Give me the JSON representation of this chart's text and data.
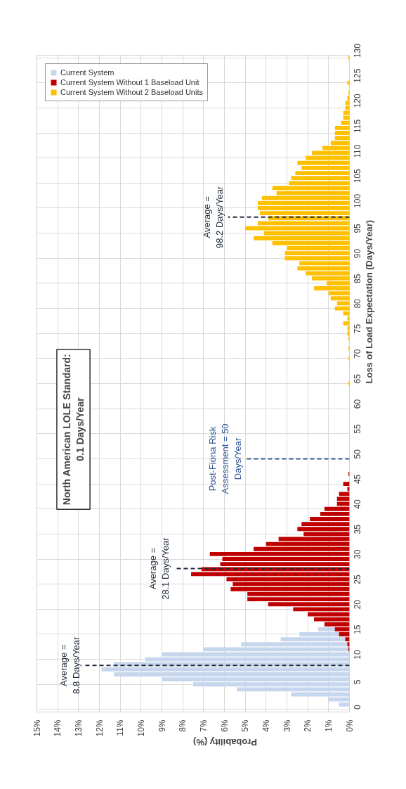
{
  "chart_data": {
    "type": "bar",
    "orientation": "horizontal",
    "xlabel": "Probability (%)",
    "ylabel": "Loss of Load Expectation (Days/Year)",
    "xlim": [
      15,
      0
    ],
    "xticks": [
      {
        "value": 0,
        "label": "0%"
      },
      {
        "value": 1,
        "label": "1%"
      },
      {
        "value": 2,
        "label": "2%"
      },
      {
        "value": 3,
        "label": "3%"
      },
      {
        "value": 4,
        "label": "4%"
      },
      {
        "value": 5,
        "label": "5%"
      },
      {
        "value": 6,
        "label": "6%"
      },
      {
        "value": 7,
        "label": "7%"
      },
      {
        "value": 8,
        "label": "8%"
      },
      {
        "value": 9,
        "label": "9%"
      },
      {
        "value": 10,
        "label": "10%"
      },
      {
        "value": 11,
        "label": "11%"
      },
      {
        "value": 12,
        "label": "12%"
      },
      {
        "value": 13,
        "label": "13%"
      },
      {
        "value": 14,
        "label": "14%"
      },
      {
        "value": 15,
        "label": "15%"
      }
    ],
    "ylim": [
      -0.5,
      130.5
    ],
    "yticks": [
      0,
      5,
      10,
      15,
      20,
      25,
      30,
      35,
      40,
      45,
      50,
      55,
      60,
      65,
      70,
      75,
      80,
      85,
      90,
      95,
      100,
      105,
      110,
      115,
      120,
      125,
      130
    ],
    "grid": true,
    "legend": "top left",
    "series": [
      {
        "name": "Current System",
        "color": "#c6d6ec",
        "x": [
          1,
          2,
          3,
          4,
          5,
          6,
          7,
          8,
          9,
          10,
          11,
          12,
          13,
          14,
          15,
          16
        ],
        "values": [
          0.5,
          1.0,
          2.8,
          5.4,
          7.5,
          9.0,
          11.3,
          11.9,
          11.3,
          9.8,
          9.0,
          7.0,
          5.2,
          3.3,
          2.4,
          1.5
        ]
      },
      {
        "name": "Current System Without 1 Baseload Unit",
        "color": "#c00000",
        "x": [
          12,
          13,
          14,
          15,
          16,
          17,
          18,
          19,
          20,
          21,
          22,
          23,
          24,
          25,
          26,
          27,
          28,
          29,
          30,
          31,
          32,
          33,
          34,
          35,
          36,
          37,
          38,
          39,
          40,
          41,
          42,
          43,
          44,
          45,
          47
        ],
        "values": [
          0.05,
          0.1,
          0.2,
          0.5,
          0.7,
          1.2,
          1.7,
          2.0,
          2.7,
          3.9,
          4.9,
          4.9,
          5.7,
          5.6,
          5.9,
          7.6,
          7.1,
          6.2,
          6.1,
          6.7,
          4.6,
          4.0,
          3.4,
          2.2,
          2.5,
          2.3,
          1.9,
          1.4,
          1.2,
          0.6,
          0.6,
          0.5,
          0.1,
          0.3,
          0.05
        ]
      },
      {
        "name": "Current System Without 2 Baseload Units",
        "color": "#ffc000",
        "x": [
          65,
          70,
          72,
          74,
          75,
          76,
          77,
          78,
          79,
          80,
          81,
          82,
          83,
          84,
          85,
          86,
          87,
          88,
          89,
          90,
          91,
          92,
          93,
          94,
          95,
          96,
          97,
          98,
          99,
          100,
          101,
          102,
          103,
          104,
          105,
          106,
          107,
          108,
          109,
          110,
          111,
          112,
          113,
          114,
          115,
          116,
          117,
          118,
          119,
          120,
          121,
          122,
          123,
          125,
          130
        ],
        "values": [
          0.05,
          0.05,
          0.05,
          0.05,
          0.1,
          0.1,
          0.3,
          0.1,
          0.3,
          0.7,
          0.6,
          0.9,
          1.0,
          1.7,
          1.1,
          1.8,
          2.1,
          2.5,
          2.4,
          3.1,
          3.1,
          3.0,
          3.7,
          4.6,
          4.1,
          5.0,
          4.4,
          3.9,
          4.3,
          4.4,
          4.4,
          4.2,
          3.5,
          3.7,
          2.9,
          2.8,
          2.6,
          2.3,
          2.5,
          2.1,
          1.8,
          1.3,
          0.9,
          0.7,
          0.7,
          0.7,
          0.4,
          0.3,
          0.3,
          0.2,
          0.2,
          0.1,
          0.05,
          0.1,
          0.05
        ]
      }
    ],
    "ref_lines": [
      {
        "axis": "y",
        "value": 8.8,
        "label": "Average =\n8.8 Days/Year",
        "color": "#1f2b3a",
        "line_style": "dashed"
      },
      {
        "axis": "y",
        "value": 28.1,
        "label": "Average =\n28.1 Days/Year",
        "color": "#1f2b3a",
        "line_style": "dashed"
      },
      {
        "axis": "y",
        "value": 50,
        "label": "Post-Fiona Risk\nAssessment = 50\nDays/Year",
        "color": "#2f5597",
        "line_style": "dashed"
      },
      {
        "axis": "y",
        "value": 98.2,
        "label": "Average =\n98.2 Days/Year",
        "color": "#1f2b3a",
        "line_style": "dashed"
      }
    ],
    "annotations": [
      "North American LOLE Standard:\n0.1 Days/Year"
    ]
  }
}
